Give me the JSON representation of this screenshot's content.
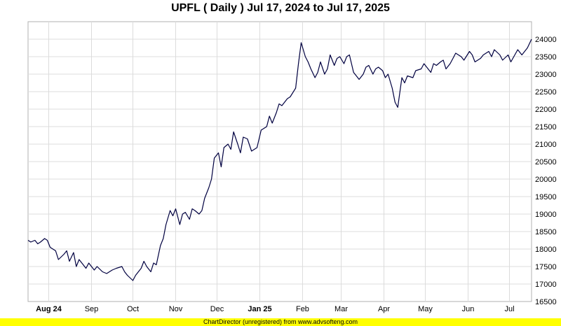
{
  "chart_data": {
    "type": "line",
    "title": "UPFL ( Daily ) Jul 17, 2024 to Jul 17, 2025",
    "xlabel": "",
    "ylabel": "",
    "x_range": [
      "2024-07-17",
      "2025-07-17"
    ],
    "ylim": [
      16500,
      24500
    ],
    "yticks": [
      16500,
      17000,
      17500,
      18000,
      18500,
      19000,
      19500,
      20000,
      20500,
      21000,
      21500,
      22000,
      22500,
      23000,
      23500,
      24000
    ],
    "x_ticks": [
      {
        "date": "2024-08-01",
        "label": "Aug 24",
        "bold": true
      },
      {
        "date": "2024-09-01",
        "label": "Sep",
        "bold": false
      },
      {
        "date": "2024-10-01",
        "label": "Oct",
        "bold": false
      },
      {
        "date": "2024-11-01",
        "label": "Nov",
        "bold": false
      },
      {
        "date": "2024-12-01",
        "label": "Dec",
        "bold": false
      },
      {
        "date": "2025-01-01",
        "label": "Jan 25",
        "bold": true
      },
      {
        "date": "2025-02-01",
        "label": "Feb",
        "bold": false
      },
      {
        "date": "2025-03-01",
        "label": "Mar",
        "bold": false
      },
      {
        "date": "2025-04-01",
        "label": "Apr",
        "bold": false
      },
      {
        "date": "2025-05-01",
        "label": "May",
        "bold": false
      },
      {
        "date": "2025-06-01",
        "label": "Jun",
        "bold": false
      },
      {
        "date": "2025-07-01",
        "label": "Jul",
        "bold": false
      }
    ],
    "grid": true,
    "y_axis_side": "right",
    "line_color": "#000040",
    "series": [
      {
        "points": [
          [
            "2024-07-17",
            18250
          ],
          [
            "2024-07-19",
            18200
          ],
          [
            "2024-07-22",
            18250
          ],
          [
            "2024-07-24",
            18150
          ],
          [
            "2024-07-26",
            18200
          ],
          [
            "2024-07-29",
            18300
          ],
          [
            "2024-07-31",
            18250
          ],
          [
            "2024-08-02",
            18050
          ],
          [
            "2024-08-06",
            17950
          ],
          [
            "2024-08-08",
            17700
          ],
          [
            "2024-08-12",
            17850
          ],
          [
            "2024-08-14",
            17950
          ],
          [
            "2024-08-16",
            17650
          ],
          [
            "2024-08-19",
            17900
          ],
          [
            "2024-08-21",
            17500
          ],
          [
            "2024-08-23",
            17700
          ],
          [
            "2024-08-26",
            17550
          ],
          [
            "2024-08-28",
            17450
          ],
          [
            "2024-08-30",
            17600
          ],
          [
            "2024-09-03",
            17400
          ],
          [
            "2024-09-05",
            17500
          ],
          [
            "2024-09-09",
            17350
          ],
          [
            "2024-09-12",
            17300
          ],
          [
            "2024-09-16",
            17400
          ],
          [
            "2024-09-19",
            17450
          ],
          [
            "2024-09-23",
            17500
          ],
          [
            "2024-09-25",
            17350
          ],
          [
            "2024-09-27",
            17250
          ],
          [
            "2024-10-01",
            17100
          ],
          [
            "2024-10-03",
            17250
          ],
          [
            "2024-10-07",
            17450
          ],
          [
            "2024-10-09",
            17650
          ],
          [
            "2024-10-11",
            17500
          ],
          [
            "2024-10-14",
            17350
          ],
          [
            "2024-10-16",
            17600
          ],
          [
            "2024-10-18",
            17550
          ],
          [
            "2024-10-21",
            18100
          ],
          [
            "2024-10-23",
            18300
          ],
          [
            "2024-10-25",
            18700
          ],
          [
            "2024-10-28",
            19100
          ],
          [
            "2024-10-30",
            18950
          ],
          [
            "2024-11-01",
            19150
          ],
          [
            "2024-11-04",
            18700
          ],
          [
            "2024-11-06",
            19000
          ],
          [
            "2024-11-08",
            19050
          ],
          [
            "2024-11-11",
            18850
          ],
          [
            "2024-11-13",
            19150
          ],
          [
            "2024-11-15",
            19100
          ],
          [
            "2024-11-18",
            19000
          ],
          [
            "2024-11-20",
            19100
          ],
          [
            "2024-11-22",
            19450
          ],
          [
            "2024-11-25",
            19750
          ],
          [
            "2024-11-27",
            20000
          ],
          [
            "2024-11-29",
            20600
          ],
          [
            "2024-12-02",
            20750
          ],
          [
            "2024-12-04",
            20350
          ],
          [
            "2024-12-06",
            20900
          ],
          [
            "2024-12-09",
            21000
          ],
          [
            "2024-12-11",
            20850
          ],
          [
            "2024-12-13",
            21350
          ],
          [
            "2024-12-16",
            21000
          ],
          [
            "2024-12-18",
            20750
          ],
          [
            "2024-12-20",
            21200
          ],
          [
            "2024-12-23",
            21150
          ],
          [
            "2024-12-26",
            20800
          ],
          [
            "2024-12-30",
            20900
          ],
          [
            "2025-01-02",
            21400
          ],
          [
            "2025-01-06",
            21500
          ],
          [
            "2025-01-08",
            21800
          ],
          [
            "2025-01-10",
            21600
          ],
          [
            "2025-01-13",
            21900
          ],
          [
            "2025-01-15",
            22150
          ],
          [
            "2025-01-17",
            22100
          ],
          [
            "2025-01-21",
            22300
          ],
          [
            "2025-01-23",
            22350
          ],
          [
            "2025-01-27",
            22600
          ],
          [
            "2025-01-29",
            23300
          ],
          [
            "2025-01-31",
            23900
          ],
          [
            "2025-02-03",
            23500
          ],
          [
            "2025-02-05",
            23350
          ],
          [
            "2025-02-07",
            23150
          ],
          [
            "2025-02-10",
            22900
          ],
          [
            "2025-02-12",
            23050
          ],
          [
            "2025-02-14",
            23350
          ],
          [
            "2025-02-17",
            23000
          ],
          [
            "2025-02-19",
            23150
          ],
          [
            "2025-02-21",
            23550
          ],
          [
            "2025-02-24",
            23250
          ],
          [
            "2025-02-26",
            23450
          ],
          [
            "2025-02-28",
            23500
          ],
          [
            "2025-03-03",
            23300
          ],
          [
            "2025-03-05",
            23500
          ],
          [
            "2025-03-07",
            23550
          ],
          [
            "2025-03-10",
            23050
          ],
          [
            "2025-03-12",
            22950
          ],
          [
            "2025-03-14",
            22850
          ],
          [
            "2025-03-17",
            23000
          ],
          [
            "2025-03-19",
            23200
          ],
          [
            "2025-03-21",
            23250
          ],
          [
            "2025-03-24",
            23000
          ],
          [
            "2025-03-26",
            23150
          ],
          [
            "2025-03-28",
            23200
          ],
          [
            "2025-03-31",
            23100
          ],
          [
            "2025-04-02",
            22900
          ],
          [
            "2025-04-04",
            23000
          ],
          [
            "2025-04-07",
            22600
          ],
          [
            "2025-04-09",
            22200
          ],
          [
            "2025-04-11",
            22050
          ],
          [
            "2025-04-14",
            22900
          ],
          [
            "2025-04-16",
            22750
          ],
          [
            "2025-04-18",
            22950
          ],
          [
            "2025-04-22",
            22900
          ],
          [
            "2025-04-24",
            23100
          ],
          [
            "2025-04-28",
            23150
          ],
          [
            "2025-04-30",
            23300
          ],
          [
            "2025-05-02",
            23200
          ],
          [
            "2025-05-05",
            23050
          ],
          [
            "2025-05-07",
            23300
          ],
          [
            "2025-05-09",
            23250
          ],
          [
            "2025-05-12",
            23350
          ],
          [
            "2025-05-14",
            23400
          ],
          [
            "2025-05-16",
            23150
          ],
          [
            "2025-05-19",
            23300
          ],
          [
            "2025-05-21",
            23450
          ],
          [
            "2025-05-23",
            23600
          ],
          [
            "2025-05-27",
            23500
          ],
          [
            "2025-05-29",
            23400
          ],
          [
            "2025-06-02",
            23650
          ],
          [
            "2025-06-04",
            23550
          ],
          [
            "2025-06-06",
            23350
          ],
          [
            "2025-06-10",
            23450
          ],
          [
            "2025-06-12",
            23550
          ],
          [
            "2025-06-16",
            23650
          ],
          [
            "2025-06-18",
            23500
          ],
          [
            "2025-06-20",
            23700
          ],
          [
            "2025-06-24",
            23550
          ],
          [
            "2025-06-26",
            23400
          ],
          [
            "2025-06-30",
            23550
          ],
          [
            "2025-07-02",
            23350
          ],
          [
            "2025-07-07",
            23700
          ],
          [
            "2025-07-10",
            23550
          ],
          [
            "2025-07-14",
            23750
          ],
          [
            "2025-07-17",
            24000
          ]
        ]
      }
    ]
  },
  "footer": {
    "text": "ChartDirector (unregistered) from www.advsofteng.com"
  }
}
